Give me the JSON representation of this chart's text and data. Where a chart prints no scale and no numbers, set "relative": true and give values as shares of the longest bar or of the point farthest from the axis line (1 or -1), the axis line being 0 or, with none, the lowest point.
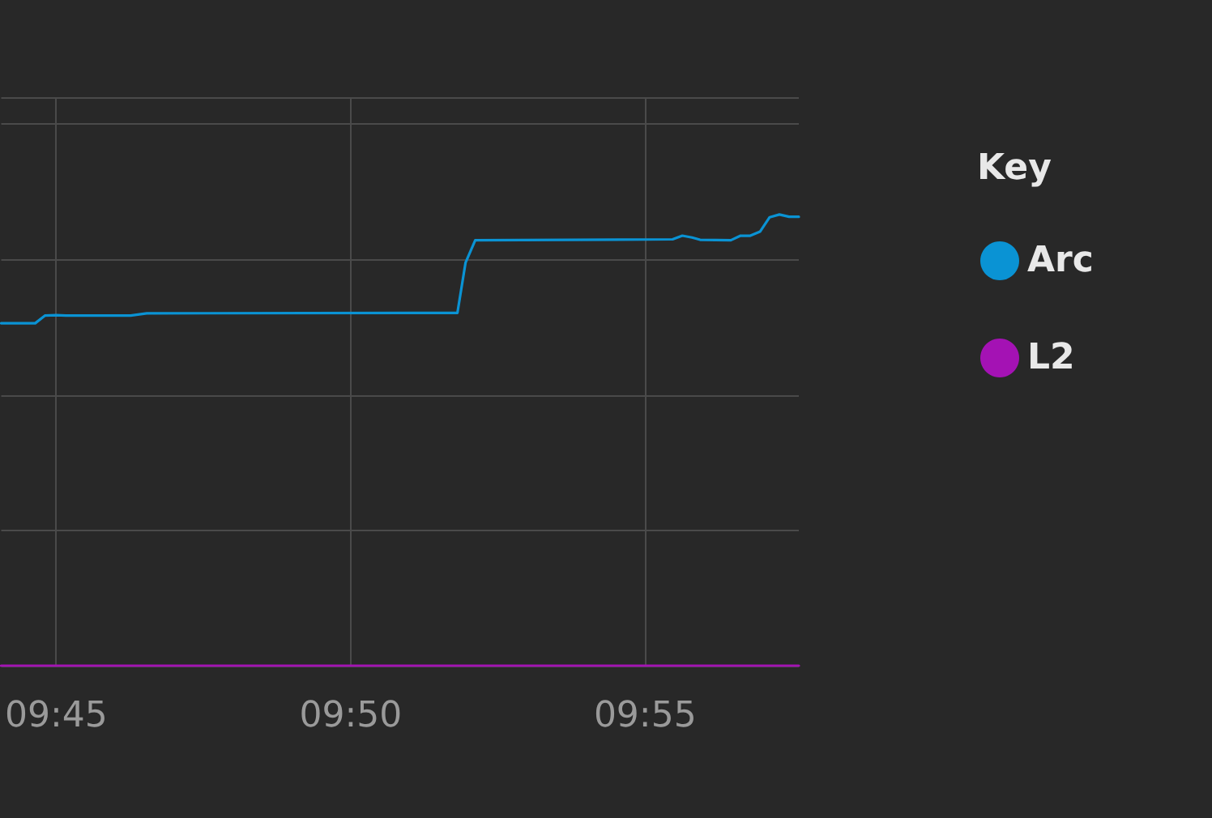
{
  "chart_data": {
    "type": "line",
    "relative": true,
    "legend_title": "Key",
    "legend": "right",
    "grid": true,
    "marker": "none",
    "xlim": [
      9.73443,
      9.96017
    ],
    "xticks": [
      {
        "value": 9.75,
        "label": "09:45"
      },
      {
        "value": 9.83333,
        "label": "09:50"
      },
      {
        "value": 9.91667,
        "label": "09:55"
      }
    ],
    "series": [
      {
        "name": "Arc",
        "color": "#0a93d4",
        "x": [
          9.73443,
          9.74405,
          9.74679,
          9.75,
          9.75275,
          9.77106,
          9.77564,
          9.86264,
          9.86355,
          9.86584,
          9.86859,
          9.92445,
          9.9272,
          9.92995,
          9.93223,
          9.94093,
          9.94368,
          9.94643,
          9.94918,
          9.95192,
          9.95467,
          9.95742,
          9.96017
        ],
        "values": [
          0.759,
          0.759,
          0.776,
          0.777,
          0.776,
          0.776,
          0.781,
          0.782,
          0.782,
          0.893,
          0.943,
          0.945,
          0.953,
          0.949,
          0.944,
          0.943,
          0.953,
          0.953,
          0.962,
          0.994,
          1,
          0.995,
          0.995
        ]
      },
      {
        "name": "L2",
        "color": "#a412b4",
        "x": [
          9.73443,
          9.96017
        ],
        "values": [
          0,
          0
        ]
      }
    ]
  }
}
